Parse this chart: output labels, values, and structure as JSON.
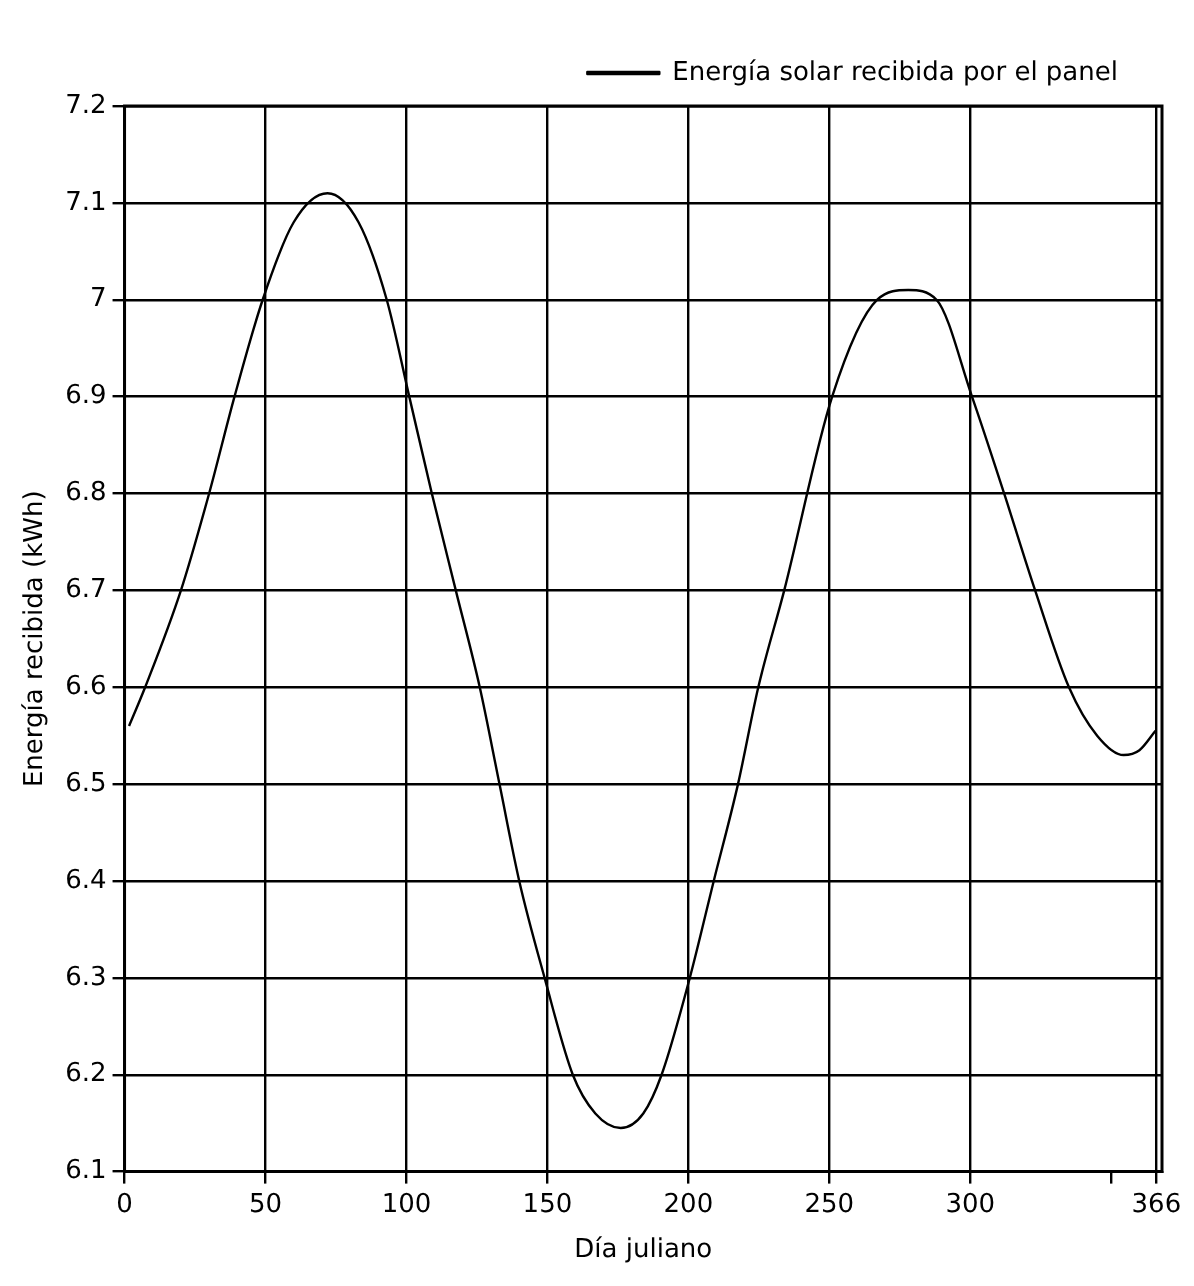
{
  "chart_data": {
    "type": "line",
    "xlabel": "Día juliano",
    "ylabel": "Energía recibida (kWh)",
    "xlim": [
      0,
      368
    ],
    "xticks": [
      0,
      50,
      100,
      150,
      200,
      250,
      300,
      {
        "value": 350,
        "label": null
      },
      366
    ],
    "ylim": [
      6.1,
      7.2
    ],
    "yticks": [
      6.1,
      6.2,
      6.3,
      6.4,
      6.5,
      6.6,
      6.7,
      6.8,
      6.9,
      7,
      7.1,
      7.2
    ],
    "grid": true,
    "legend": "top right",
    "marker": "none",
    "line_style": "solid",
    "series": [
      {
        "name": "Energía solar recibida por el panel",
        "color": "#000000",
        "x": [
          1.6,
          7.3,
          20,
          30,
          39,
          49,
          60,
          72,
          83,
          93,
          101,
          109,
          117.5,
          126,
          133,
          140,
          149,
          159,
          167,
          176,
          184,
          190.5,
          200.5,
          209,
          217.6,
          224.8,
          234,
          251,
          267,
          278,
          288,
          300.6,
          312,
          323,
          335,
          345,
          354.4,
          360,
          365.7
        ],
        "values": [
          6.56,
          6.6,
          6.7,
          6.8,
          6.9,
          7,
          7.08,
          7.11,
          7.08,
          7,
          6.9,
          6.8,
          6.7,
          6.6,
          6.5,
          6.4,
          6.3,
          6.2,
          6.16,
          6.145,
          6.16,
          6.2,
          6.3,
          6.4,
          6.5,
          6.6,
          6.7,
          6.9,
          7,
          7.01,
          7,
          6.9,
          6.8,
          6.7,
          6.6,
          6.55,
          6.53,
          6.535,
          6.555
        ]
      }
    ]
  }
}
